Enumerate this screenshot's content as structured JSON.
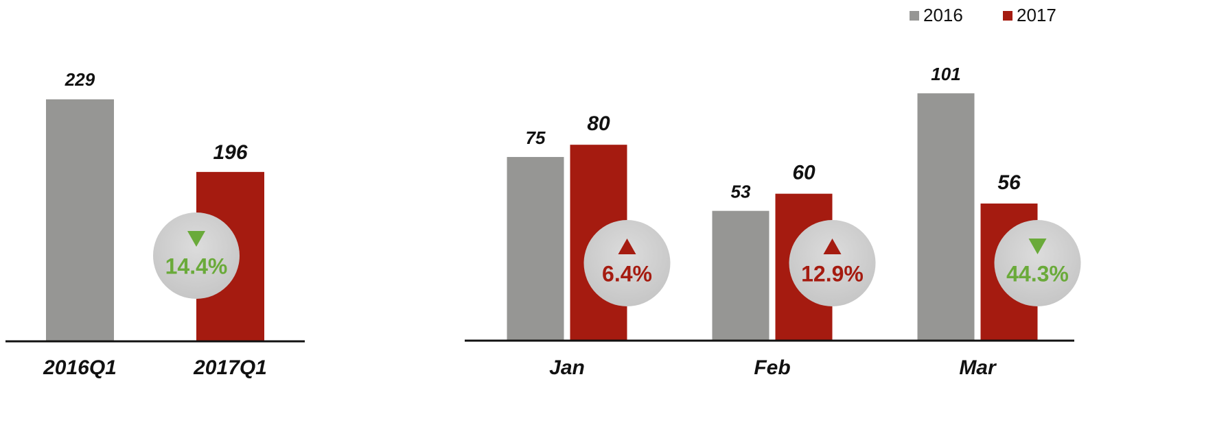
{
  "chart_data": [
    {
      "type": "bar",
      "categories": [
        "2016Q1",
        "2017Q1"
      ],
      "values": [
        229,
        196
      ],
      "colors": [
        "#969694",
        "#a51b10"
      ],
      "ylim": [
        119,
        243
      ],
      "annotation": {
        "label": "14.4%",
        "direction": "down",
        "color": "#6aaa3a"
      }
    },
    {
      "type": "grouped_bar",
      "categories": [
        "Jan",
        "Feb",
        "Mar"
      ],
      "series": [
        {
          "name": "2016",
          "color": "#969694",
          "values": [
            75,
            53,
            101
          ]
        },
        {
          "name": "2017",
          "color": "#a51b10",
          "values": [
            80,
            60,
            56
          ]
        }
      ],
      "ylim": [
        0,
        110
      ],
      "legend": "top-right",
      "annotations": [
        {
          "label": "6.4%",
          "direction": "up",
          "color": "#a51b10"
        },
        {
          "label": "12.9%",
          "direction": "up",
          "color": "#a51b10"
        },
        {
          "label": "44.3%",
          "direction": "down",
          "color": "#6aaa3a"
        }
      ]
    }
  ]
}
